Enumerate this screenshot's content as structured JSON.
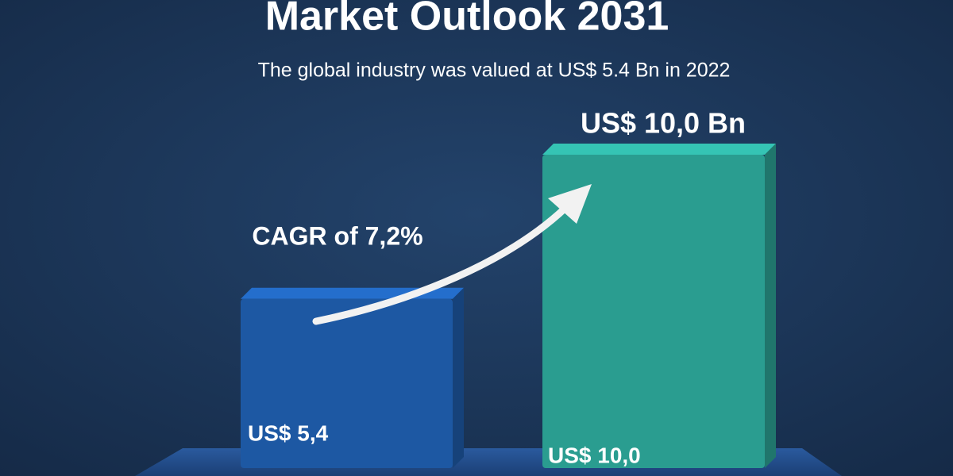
{
  "chart_data": {
    "type": "bar",
    "title": "Market Outlook 2031",
    "subtitle": "The global industry was valued at US$ 5.4 Bn in 2022",
    "categories": [
      null,
      null
    ],
    "values": [
      5.4,
      10.0
    ],
    "value_labels": [
      "US$ 5,4",
      "US$ 10,0"
    ],
    "colors": [
      "#1d58a3",
      "#2a9d90"
    ],
    "annotations": [
      "US$ 10,0 Bn",
      "CAGR of 7,2%"
    ]
  }
}
